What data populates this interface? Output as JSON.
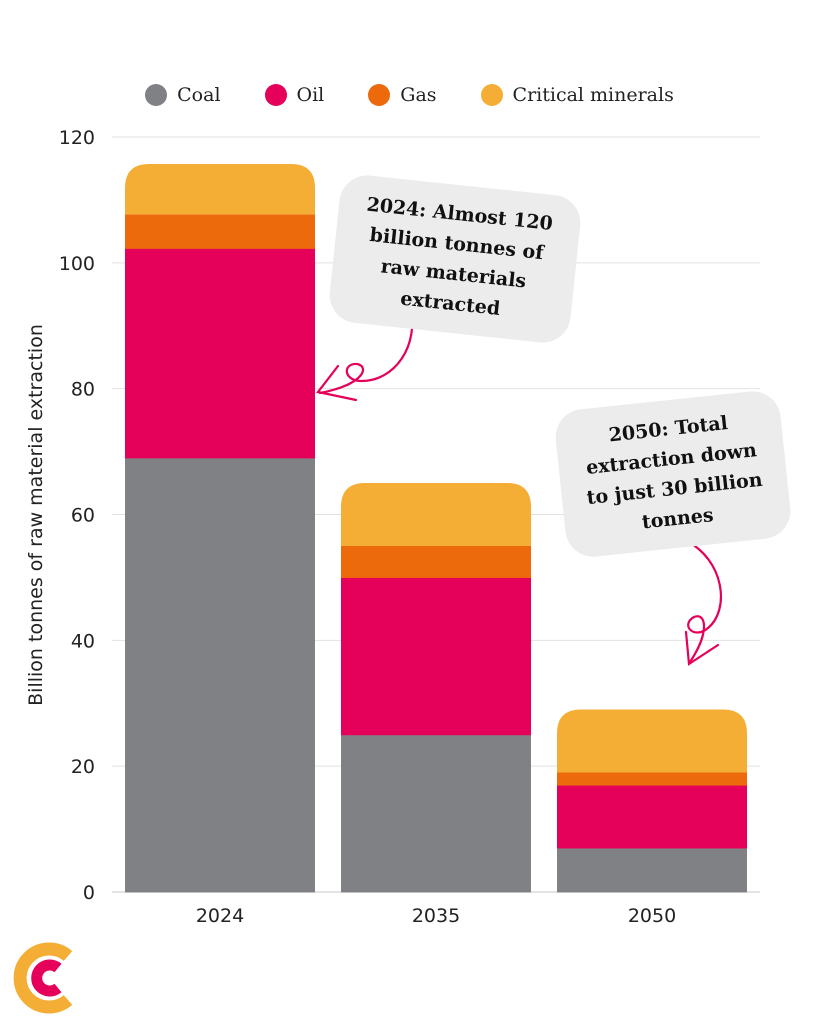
{
  "legend": {
    "items": [
      {
        "label": "Coal",
        "color": "#808184"
      },
      {
        "label": "Oil",
        "color": "#e5005a"
      },
      {
        "label": "Gas",
        "color": "#ec6a0c"
      },
      {
        "label": "Critical minerals",
        "color": "#f5ae35"
      }
    ]
  },
  "annotations": {
    "callout_2024": "2024:  Almost 120 billion tonnes of raw materials extracted",
    "callout_2050": "2050: Total extraction down to just 30 billion tonnes",
    "arrow_color": "#e5005a"
  },
  "logo": {
    "icon": "carbon-brief-logo-icon",
    "colors": [
      "#f5ae35",
      "#e5005a"
    ]
  },
  "chart_data": {
    "type": "bar",
    "stacked": true,
    "title": "",
    "xlabel": "",
    "ylabel": "Billion tonnes of raw material extraction",
    "ylim": [
      0,
      120
    ],
    "yticks": [
      "0",
      "20",
      "40",
      "60",
      "80",
      "100",
      "120"
    ],
    "grid": true,
    "legend_position": "top",
    "categories": [
      "2024",
      "2035",
      "2050"
    ],
    "series": [
      {
        "name": "Coal",
        "color": "#808184",
        "values": [
          69,
          25,
          7
        ]
      },
      {
        "name": "Oil",
        "color": "#e5005a",
        "values": [
          33.3,
          25,
          10
        ]
      },
      {
        "name": "Gas",
        "color": "#ec6a0c",
        "values": [
          5.4,
          5,
          2
        ]
      },
      {
        "name": "Critical minerals",
        "color": "#f5ae35",
        "values": [
          8,
          10,
          10
        ]
      }
    ]
  }
}
